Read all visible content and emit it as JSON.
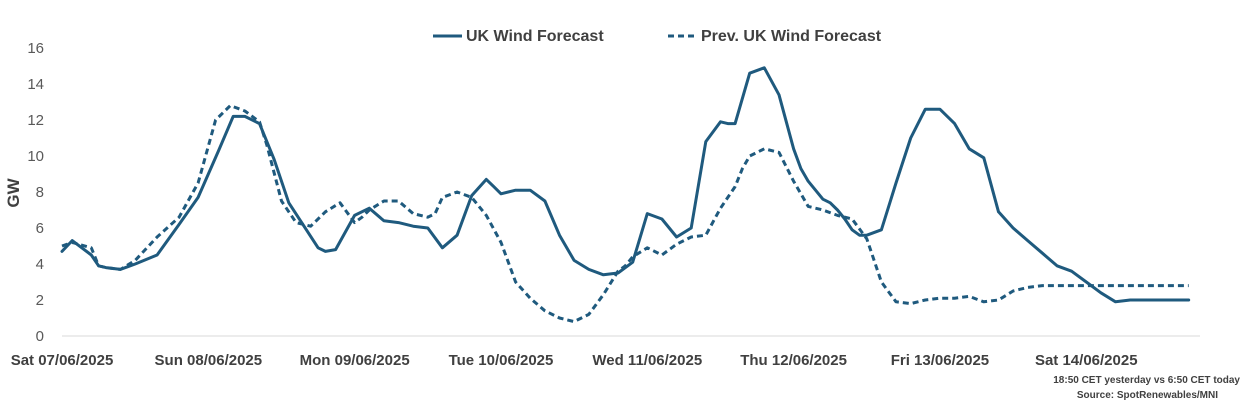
{
  "chart_data": {
    "type": "line",
    "ylabel": "GW",
    "xlabel": "",
    "ylim": [
      0,
      16
    ],
    "yticks": [
      0,
      2,
      4,
      6,
      8,
      10,
      12,
      14,
      16
    ],
    "grid": false,
    "legend_position": "top",
    "x_start": "Sat 07/06/2025",
    "x_end_days": 7.75,
    "categories": [
      "Sat 07/06/2025",
      "Sun 08/06/2025",
      "Mon 09/06/2025",
      "Tue 10/06/2025",
      "Wed 11/06/2025",
      "Thu 12/06/2025",
      "Fri 13/06/2025",
      "Sat 14/06/2025"
    ],
    "series": [
      {
        "name": "UK Wind Forecast",
        "style": "solid",
        "color": "#1f5a7e",
        "x": [
          0,
          0.07,
          0.2,
          0.25,
          0.3,
          0.4,
          0.5,
          0.65,
          0.8,
          0.93,
          1.07,
          1.17,
          1.25,
          1.35,
          1.45,
          1.55,
          1.75,
          1.8,
          1.87,
          2.0,
          2.1,
          2.2,
          2.3,
          2.4,
          2.5,
          2.6,
          2.7,
          2.8,
          2.9,
          2.95,
          3.0,
          3.1,
          3.15,
          3.2,
          3.3,
          3.4,
          3.5,
          3.6,
          3.7,
          3.8,
          3.9,
          4.0,
          4.1,
          4.2,
          4.3,
          4.4,
          4.5,
          4.55,
          4.6,
          4.7,
          4.8,
          4.9,
          4.95,
          5.0,
          5.05,
          5.1,
          5.2,
          5.25,
          5.3,
          5.35,
          5.4,
          5.45,
          5.5,
          5.6,
          5.7,
          5.8,
          5.9,
          6.0,
          6.1,
          6.2,
          6.3,
          6.4,
          6.5,
          6.6,
          6.7,
          6.8,
          6.9,
          7.0,
          7.1,
          7.2,
          7.3,
          7.4,
          7.5,
          7.6,
          7.7
        ],
        "values": [
          4.7,
          5.3,
          4.5,
          3.9,
          3.8,
          3.7,
          4.0,
          4.5,
          6.2,
          7.7,
          10.3,
          12.2,
          12.2,
          11.8,
          9.8,
          7.4,
          4.9,
          4.7,
          4.8,
          6.7,
          7.1,
          6.4,
          6.3,
          6.1,
          6.0,
          4.9,
          5.6,
          7.8,
          8.7,
          8.3,
          7.9,
          8.1,
          8.1,
          8.1,
          7.5,
          5.6,
          4.2,
          3.7,
          3.4,
          3.5,
          4.1,
          6.8,
          6.5,
          5.5,
          6.0,
          10.8,
          11.9,
          11.8,
          11.8,
          14.6,
          14.9,
          13.4,
          11.9,
          10.4,
          9.3,
          8.6,
          7.6,
          7.4,
          7.0,
          6.5,
          5.9,
          5.6,
          5.6,
          5.9,
          8.5,
          11.0,
          12.6,
          12.6,
          11.8,
          10.4,
          9.9,
          6.9,
          6.0,
          5.3,
          4.6,
          3.9,
          3.6,
          3.0,
          2.4,
          1.9,
          2.0,
          2.0,
          2.0,
          2.0,
          2.0
        ]
      },
      {
        "name": "Prev. UK Wind Forecast",
        "style": "dashed",
        "color": "#1f5a7e",
        "x": [
          0,
          0.07,
          0.2,
          0.25,
          0.3,
          0.4,
          0.5,
          0.65,
          0.8,
          0.93,
          1.05,
          1.15,
          1.25,
          1.35,
          1.4,
          1.5,
          1.6,
          1.7,
          1.8,
          1.9,
          2.0,
          2.05,
          2.1,
          2.2,
          2.3,
          2.4,
          2.5,
          2.55,
          2.6,
          2.7,
          2.8,
          2.9,
          3.0,
          3.1,
          3.2,
          3.3,
          3.4,
          3.5,
          3.6,
          3.7,
          3.8,
          3.85,
          3.9,
          4.0,
          4.1,
          4.2,
          4.3,
          4.4,
          4.5,
          4.6,
          4.65,
          4.7,
          4.8,
          4.9,
          5.0,
          5.1,
          5.2,
          5.3,
          5.4,
          5.5,
          5.6,
          5.7,
          5.8,
          5.9,
          6.0,
          6.1,
          6.2,
          6.3,
          6.4,
          6.5,
          6.6,
          6.7,
          6.8,
          6.9,
          7.0,
          7.05,
          7.1,
          7.2,
          7.3,
          7.4,
          7.5,
          7.6,
          7.7
        ],
        "values": [
          5.0,
          5.2,
          4.9,
          3.9,
          3.8,
          3.7,
          4.2,
          5.5,
          6.6,
          8.5,
          12.0,
          12.8,
          12.5,
          11.9,
          10.6,
          7.5,
          6.3,
          6.1,
          6.9,
          7.4,
          6.3,
          6.6,
          7.0,
          7.5,
          7.5,
          6.8,
          6.6,
          6.8,
          7.7,
          8.0,
          7.7,
          6.7,
          5.2,
          3.0,
          2.1,
          1.4,
          1.0,
          0.8,
          1.2,
          2.3,
          3.6,
          3.9,
          4.4,
          4.9,
          4.5,
          5.1,
          5.5,
          5.6,
          7.1,
          8.3,
          9.3,
          10.0,
          10.4,
          10.2,
          8.6,
          7.2,
          7.0,
          6.7,
          6.5,
          5.4,
          3.0,
          1.9,
          1.8,
          2.0,
          2.1,
          2.1,
          2.2,
          1.9,
          2.0,
          2.5,
          2.7,
          2.8,
          2.8,
          2.8,
          2.8,
          2.8,
          2.8,
          2.8,
          2.8,
          2.8,
          2.8,
          2.8,
          2.8
        ]
      }
    ],
    "annotations": [
      "18:50 CET yesterday vs  6:50 CET today",
      "Source: SpotRenewables/MNI"
    ]
  }
}
